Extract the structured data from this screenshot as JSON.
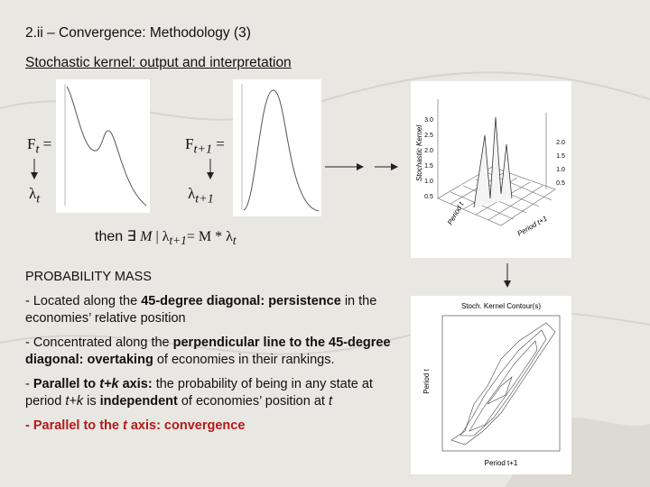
{
  "header": {
    "title": "2.ii – Convergence: Methodology (3)",
    "subtitle": "Stochastic kernel: output and interpretation"
  },
  "formulas": {
    "f_t": {
      "main": "F",
      "sub": "t",
      "suffix": " ="
    },
    "f_t1": {
      "main": "F",
      "sub": "t+1",
      "suffix": " ="
    },
    "lambda_t": {
      "main": "λ",
      "sub": "t"
    },
    "lambda_t1": {
      "main": "λ",
      "sub": "t+1"
    },
    "equation": [
      "then ∃ ",
      "M",
      " | λ",
      "t+1",
      "= M * λ",
      "t"
    ]
  },
  "kernel_plot": {
    "z_label": "Stochastic Kernel",
    "x_label": "Period t",
    "y_label": "Period t+1",
    "left_ticks": [
      "3.0",
      "2.5",
      "2.0",
      "1.5",
      "1.0",
      "0.5"
    ],
    "right_ticks": [
      "2.0",
      "1.5",
      "1.0",
      "0.5"
    ]
  },
  "contour_plot": {
    "title": "Stoch. Kernel Contour(s)",
    "y_label": "Period t",
    "x_label": "Period t+1"
  },
  "body": {
    "heading": "PROBABILITY MASS",
    "bullets": [
      [
        "- Located along the ",
        "45-degree diagonal: persistence",
        " in the economies’ relative position"
      ],
      [
        "- Concentrated along the ",
        "perpendicular line to the 45-degree diagonal: overtaking",
        " of economies in their rankings."
      ],
      [
        "- ",
        "Parallel to ",
        "t+k",
        " axis:",
        " the probability of being in any state at period ",
        "t+k",
        " is ",
        "independent",
        " of economies’ position at ",
        "t"
      ],
      [
        "- Parallel to the ",
        "t",
        " axis: convergence"
      ]
    ]
  }
}
